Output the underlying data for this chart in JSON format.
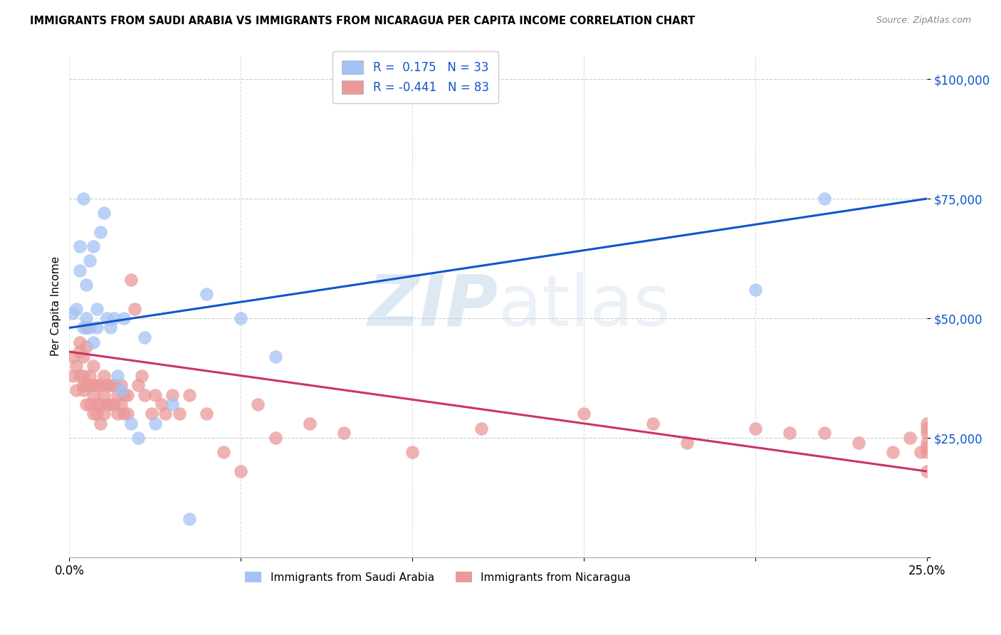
{
  "title": "IMMIGRANTS FROM SAUDI ARABIA VS IMMIGRANTS FROM NICARAGUA PER CAPITA INCOME CORRELATION CHART",
  "source": "Source: ZipAtlas.com",
  "ylabel": "Per Capita Income",
  "xlim": [
    0.0,
    0.25
  ],
  "ylim": [
    0,
    105000
  ],
  "yticks": [
    0,
    25000,
    50000,
    75000,
    100000
  ],
  "ytick_labels": [
    "",
    "$25,000",
    "$50,000",
    "$75,000",
    "$100,000"
  ],
  "blue_R": "0.175",
  "blue_N": "33",
  "pink_R": "-0.441",
  "pink_N": "83",
  "blue_color": "#a4c2f4",
  "pink_color": "#ea9999",
  "blue_line_color": "#1155cc",
  "pink_line_color": "#cc3366",
  "watermark_zip": "ZIP",
  "watermark_atlas": "atlas",
  "blue_line_x0": 0.0,
  "blue_line_y0": 48000,
  "blue_line_x1": 0.25,
  "blue_line_y1": 75000,
  "pink_line_x0": 0.0,
  "pink_line_y0": 43000,
  "pink_line_x1": 0.25,
  "pink_line_y1": 18000,
  "saudi_x": [
    0.001,
    0.002,
    0.003,
    0.003,
    0.004,
    0.004,
    0.005,
    0.005,
    0.006,
    0.006,
    0.007,
    0.007,
    0.008,
    0.008,
    0.009,
    0.01,
    0.011,
    0.012,
    0.013,
    0.014,
    0.015,
    0.016,
    0.018,
    0.02,
    0.022,
    0.025,
    0.03,
    0.035,
    0.04,
    0.05,
    0.06,
    0.2,
    0.22
  ],
  "saudi_y": [
    51000,
    52000,
    65000,
    60000,
    48000,
    75000,
    57000,
    50000,
    48000,
    62000,
    65000,
    45000,
    52000,
    48000,
    68000,
    72000,
    50000,
    48000,
    50000,
    38000,
    35000,
    50000,
    28000,
    25000,
    46000,
    28000,
    32000,
    8000,
    55000,
    50000,
    42000,
    56000,
    75000
  ],
  "nicaragua_x": [
    0.001,
    0.001,
    0.002,
    0.002,
    0.003,
    0.003,
    0.003,
    0.004,
    0.004,
    0.004,
    0.004,
    0.005,
    0.005,
    0.005,
    0.005,
    0.006,
    0.006,
    0.006,
    0.007,
    0.007,
    0.007,
    0.007,
    0.008,
    0.008,
    0.008,
    0.009,
    0.009,
    0.009,
    0.01,
    0.01,
    0.01,
    0.011,
    0.011,
    0.012,
    0.012,
    0.013,
    0.013,
    0.014,
    0.014,
    0.015,
    0.015,
    0.016,
    0.016,
    0.017,
    0.017,
    0.018,
    0.019,
    0.02,
    0.021,
    0.022,
    0.024,
    0.025,
    0.027,
    0.028,
    0.03,
    0.032,
    0.035,
    0.04,
    0.045,
    0.05,
    0.055,
    0.06,
    0.07,
    0.08,
    0.1,
    0.12,
    0.15,
    0.17,
    0.18,
    0.2,
    0.21,
    0.22,
    0.23,
    0.24,
    0.245,
    0.248,
    0.25,
    0.25,
    0.25,
    0.25,
    0.25,
    0.25,
    0.25
  ],
  "nicaragua_y": [
    42000,
    38000,
    40000,
    35000,
    45000,
    43000,
    38000,
    36000,
    42000,
    38000,
    35000,
    48000,
    44000,
    36000,
    32000,
    38000,
    36000,
    32000,
    40000,
    36000,
    34000,
    30000,
    36000,
    32000,
    30000,
    36000,
    32000,
    28000,
    38000,
    34000,
    30000,
    36000,
    32000,
    36000,
    32000,
    36000,
    32000,
    34000,
    30000,
    36000,
    32000,
    34000,
    30000,
    34000,
    30000,
    58000,
    52000,
    36000,
    38000,
    34000,
    30000,
    34000,
    32000,
    30000,
    34000,
    30000,
    34000,
    30000,
    22000,
    18000,
    32000,
    25000,
    28000,
    26000,
    22000,
    27000,
    30000,
    28000,
    24000,
    27000,
    26000,
    26000,
    24000,
    22000,
    25000,
    22000,
    27000,
    22000,
    26000,
    24000,
    28000,
    23000,
    18000
  ]
}
